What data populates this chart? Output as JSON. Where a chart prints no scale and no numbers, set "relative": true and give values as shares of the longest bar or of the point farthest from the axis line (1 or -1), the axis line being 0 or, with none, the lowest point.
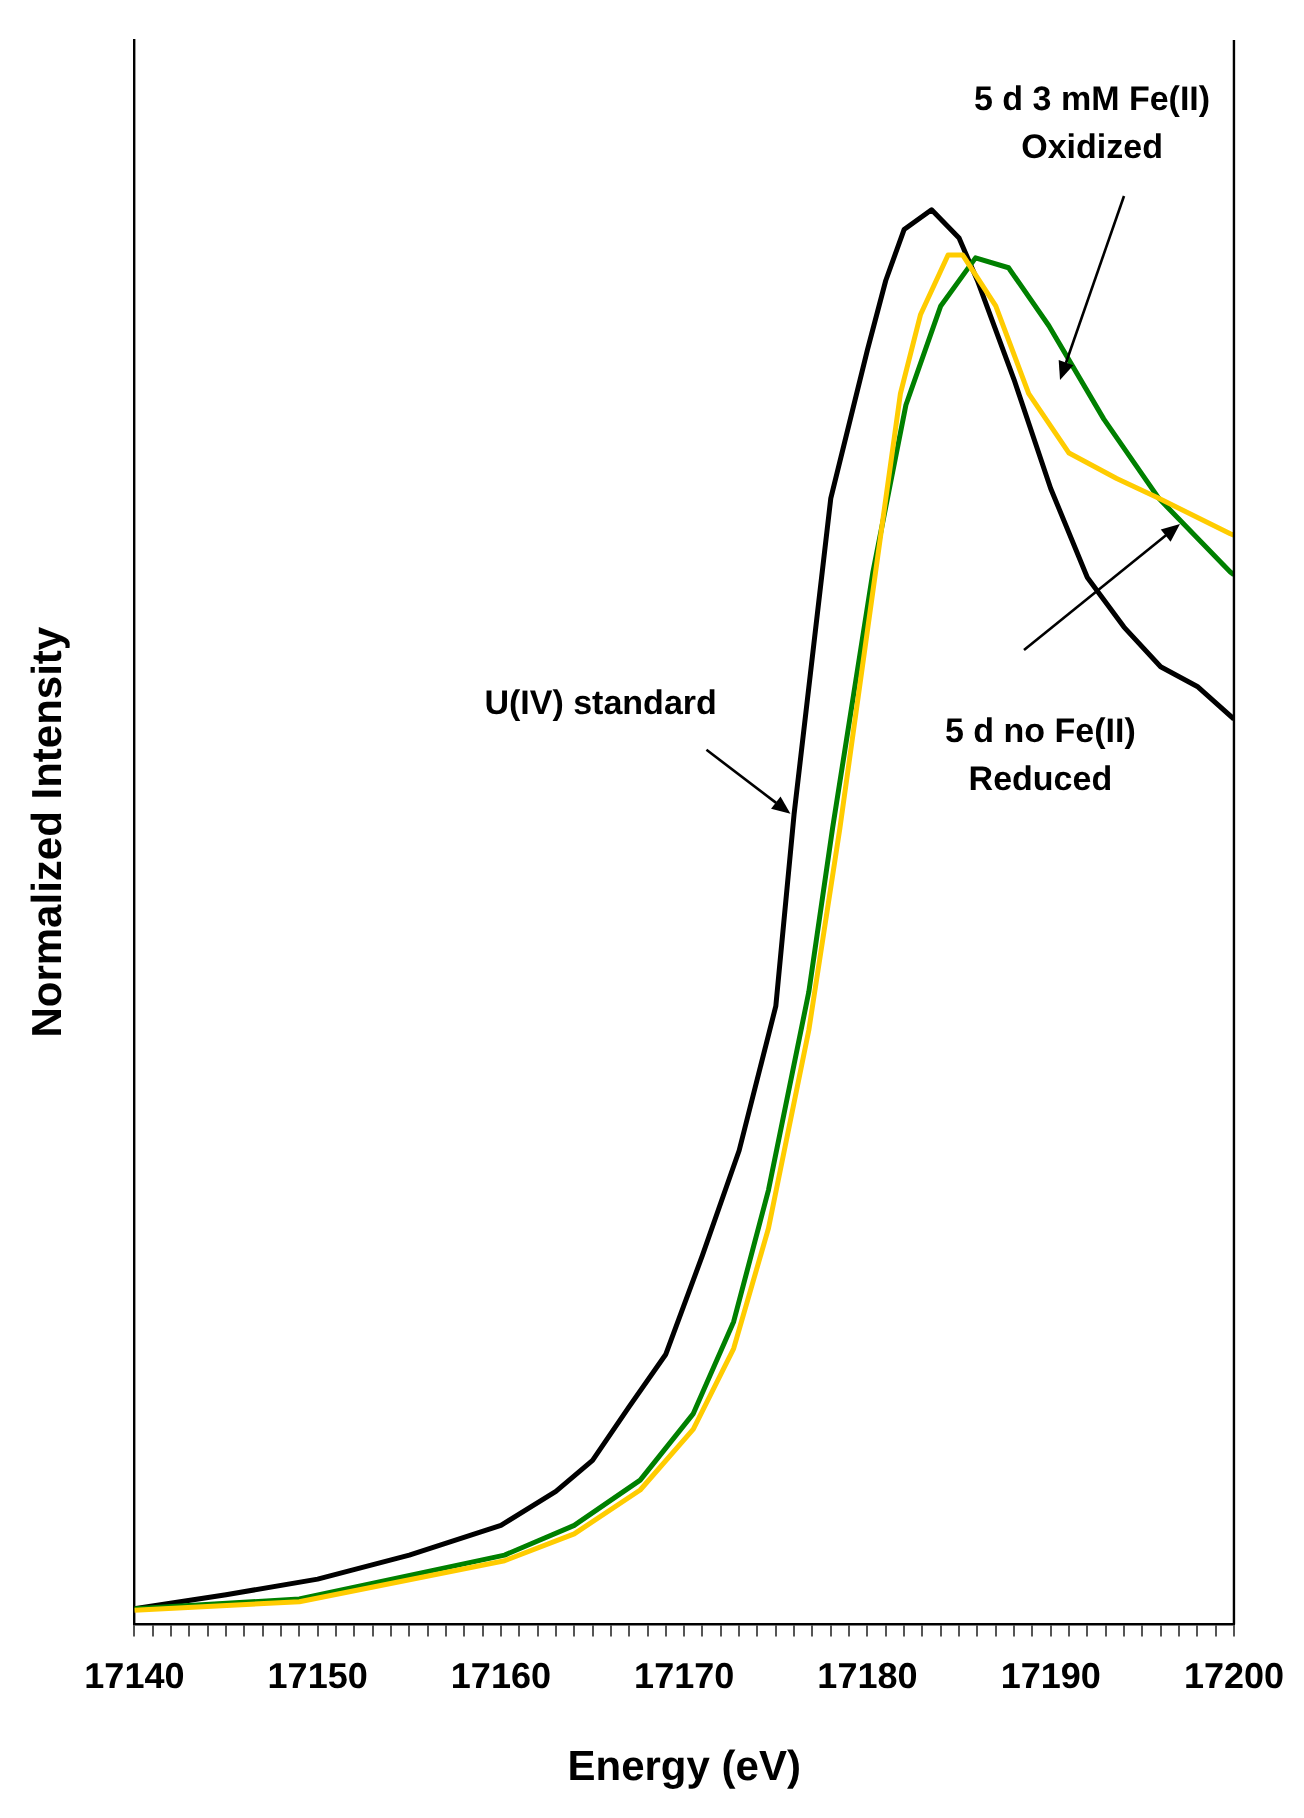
{
  "chart_data": {
    "type": "line",
    "xlabel": "Energy (eV)",
    "ylabel": "Normalized Intensity",
    "relative": true,
    "grid": false,
    "legend": false,
    "marker": "none",
    "line_style": "solid",
    "xlim": [
      17140,
      17200
    ],
    "xticks": [
      17140,
      {
        "value": 17141,
        "label": null
      },
      {
        "value": 17142,
        "label": null
      },
      {
        "value": 17143,
        "label": null
      },
      {
        "value": 17144,
        "label": null
      },
      {
        "value": 17145,
        "label": null
      },
      {
        "value": 17146,
        "label": null
      },
      {
        "value": 17147,
        "label": null
      },
      {
        "value": 17148,
        "label": null
      },
      {
        "value": 17149,
        "label": null
      },
      17150,
      {
        "value": 17151,
        "label": null
      },
      {
        "value": 17152,
        "label": null
      },
      {
        "value": 17153,
        "label": null
      },
      {
        "value": 17154,
        "label": null
      },
      {
        "value": 17155,
        "label": null
      },
      {
        "value": 17156,
        "label": null
      },
      {
        "value": 17157,
        "label": null
      },
      {
        "value": 17158,
        "label": null
      },
      {
        "value": 17159,
        "label": null
      },
      17160,
      {
        "value": 17161,
        "label": null
      },
      {
        "value": 17162,
        "label": null
      },
      {
        "value": 17163,
        "label": null
      },
      {
        "value": 17164,
        "label": null
      },
      {
        "value": 17165,
        "label": null
      },
      {
        "value": 17166,
        "label": null
      },
      {
        "value": 17167,
        "label": null
      },
      {
        "value": 17168,
        "label": null
      },
      {
        "value": 17169,
        "label": null
      },
      17170,
      {
        "value": 17171,
        "label": null
      },
      {
        "value": 17172,
        "label": null
      },
      {
        "value": 17173,
        "label": null
      },
      {
        "value": 17174,
        "label": null
      },
      {
        "value": 17175,
        "label": null
      },
      {
        "value": 17176,
        "label": null
      },
      {
        "value": 17177,
        "label": null
      },
      {
        "value": 17178,
        "label": null
      },
      {
        "value": 17179,
        "label": null
      },
      17180,
      {
        "value": 17181,
        "label": null
      },
      {
        "value": 17182,
        "label": null
      },
      {
        "value": 17183,
        "label": null
      },
      {
        "value": 17184,
        "label": null
      },
      {
        "value": 17185,
        "label": null
      },
      {
        "value": 17186,
        "label": null
      },
      {
        "value": 17187,
        "label": null
      },
      {
        "value": 17188,
        "label": null
      },
      {
        "value": 17189,
        "label": null
      },
      17190,
      {
        "value": 17191,
        "label": null
      },
      {
        "value": 17192,
        "label": null
      },
      {
        "value": 17193,
        "label": null
      },
      {
        "value": 17194,
        "label": null
      },
      {
        "value": 17195,
        "label": null
      },
      {
        "value": 17196,
        "label": null
      },
      {
        "value": 17197,
        "label": null
      },
      {
        "value": 17198,
        "label": null
      },
      {
        "value": 17199,
        "label": null
      },
      17200
    ],
    "series": [
      {
        "color": "#ffcc00",
        "x": [
          17140,
          17149,
          17160.2,
          17164,
          17167.6,
          17170.5,
          17172.7,
          17174.6,
          17176.8,
          17178.5,
          17181.8,
          17182.9,
          17184.4,
          17185.2,
          17187,
          17188.8,
          17191,
          17193.6,
          17195.9,
          17199.8,
          17200
        ],
        "values": [
          0.01,
          0.016,
          0.045,
          0.064,
          0.095,
          0.138,
          0.195,
          0.28,
          0.42,
          0.563,
          0.87,
          0.926,
          0.968,
          0.968,
          0.932,
          0.87,
          0.828,
          0.81,
          0.796,
          0.771,
          0.77
        ]
      },
      {
        "color": "#008000",
        "x": [
          17140,
          17149,
          17160.2,
          17164,
          17167.6,
          17170.5,
          17172.7,
          17174.6,
          17176.8,
          17178.1,
          17180.3,
          17182.1,
          17184,
          17185.9,
          17187.7,
          17189.9,
          17192.9,
          17195.9,
          17199.8,
          17200
        ],
        "values": [
          0.011,
          0.018,
          0.049,
          0.07,
          0.102,
          0.149,
          0.214,
          0.307,
          0.447,
          0.563,
          0.744,
          0.862,
          0.932,
          0.966,
          0.959,
          0.918,
          0.852,
          0.796,
          0.744,
          0.742
        ]
      },
      {
        "color": "#000000",
        "x": [
          17140,
          17145,
          17150,
          17155,
          17160,
          17163,
          17165,
          17167,
          17169,
          17171,
          17173,
          17175,
          17176,
          17178,
          17180,
          17181,
          17182,
          17183.5,
          17185,
          17186,
          17188,
          17190,
          17192,
          17194,
          17196,
          17198,
          17200
        ],
        "values": [
          0.011,
          0.021,
          0.032,
          0.049,
          0.07,
          0.094,
          0.116,
          0.154,
          0.191,
          0.261,
          0.335,
          0.437,
          0.573,
          0.796,
          0.901,
          0.95,
          0.986,
          1,
          0.98,
          0.95,
          0.88,
          0.803,
          0.74,
          0.705,
          0.677,
          0.663,
          0.64
        ]
      }
    ],
    "annotations": [
      {
        "text": "U(IV) standard",
        "x": 17175.8,
        "y": 0.573
      },
      "5 d 3 mM Fe(II)\nOxidized",
      "5 d no Fe(II)\nReduced"
    ]
  }
}
